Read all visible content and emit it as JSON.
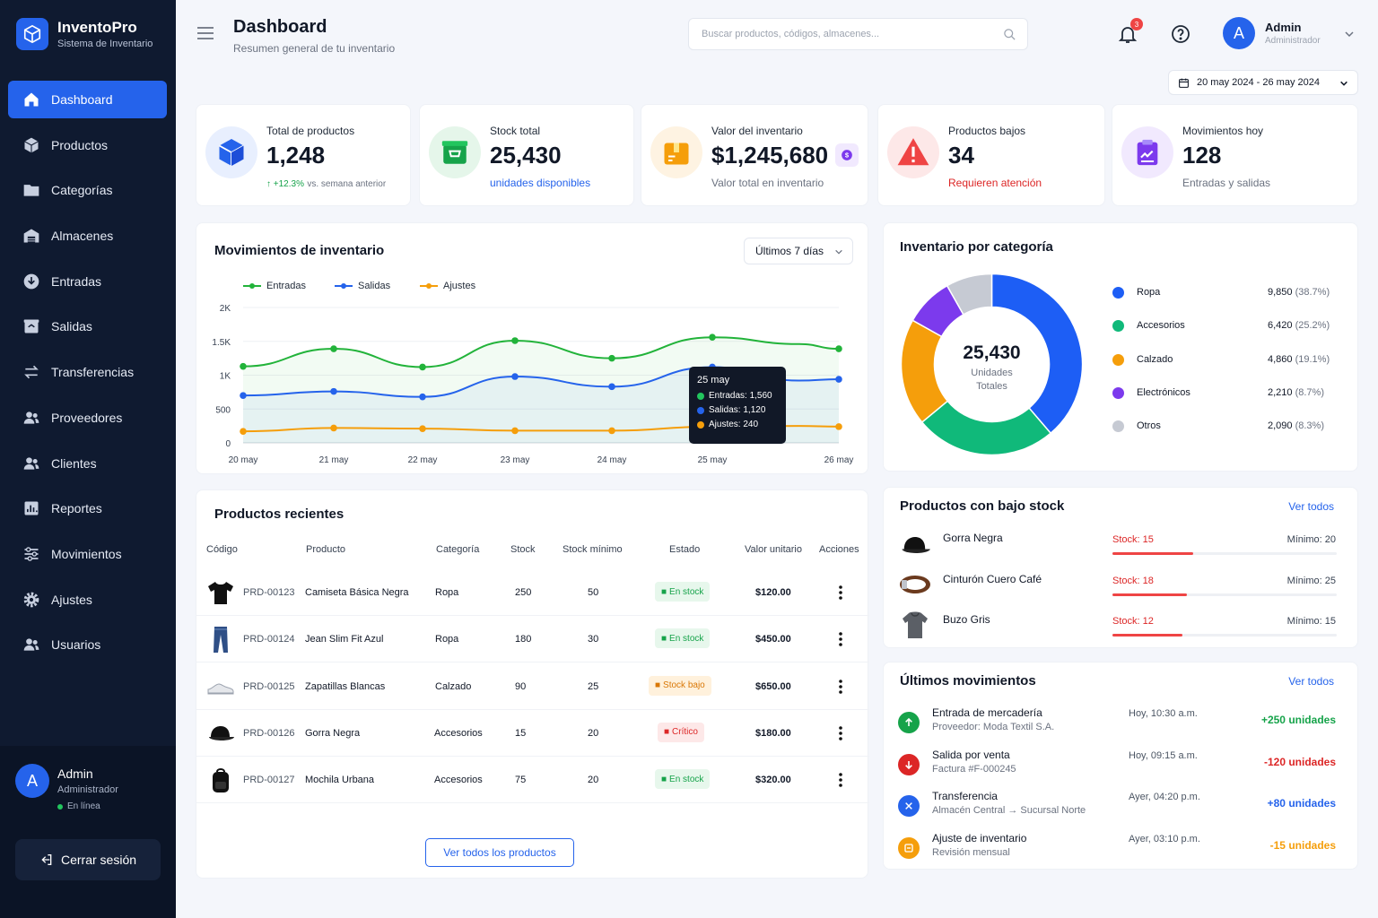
{
  "brand": {
    "name": "InventoPro",
    "subtitle": "Sistema de Inventario"
  },
  "nav": [
    {
      "label": "Dashboard",
      "icon": "home-icon",
      "active": true
    },
    {
      "label": "Productos",
      "icon": "box-icon"
    },
    {
      "label": "Categorías",
      "icon": "folder-icon"
    },
    {
      "label": "Almacenes",
      "icon": "warehouse-icon"
    },
    {
      "label": "Entradas",
      "icon": "download-icon"
    },
    {
      "label": "Salidas",
      "icon": "upload-box-icon"
    },
    {
      "label": "Transferencias",
      "icon": "transfer-icon"
    },
    {
      "label": "Proveedores",
      "icon": "users-icon"
    },
    {
      "label": "Clientes",
      "icon": "users-icon"
    },
    {
      "label": "Reportes",
      "icon": "chart-icon"
    },
    {
      "label": "Movimientos",
      "icon": "sliders-icon"
    },
    {
      "label": "Ajustes",
      "icon": "gear-icon"
    },
    {
      "label": "Usuarios",
      "icon": "users-icon"
    }
  ],
  "sidebar_user": {
    "initial": "A",
    "name": "Admin",
    "role": "Administrador",
    "status": "En línea",
    "logout": "Cerrar sesión"
  },
  "header": {
    "title": "Dashboard",
    "subtitle": "Resumen general de tu inventario",
    "search_placeholder": "Buscar productos, códigos, almacenes...",
    "notifications": "3",
    "user_initial": "A",
    "user_name": "Admin",
    "user_role": "Administrador",
    "date_range": "20 may 2024 - 26 may 2024"
  },
  "stats": [
    {
      "label": "Total de productos",
      "value": "1,248",
      "trend": "+12.3%",
      "trend_note": "vs. semana anterior",
      "color": "#2563eb"
    },
    {
      "label": "Stock total",
      "value": "25,430",
      "foot": "unidades disponibles",
      "color": "#16a34a"
    },
    {
      "label": "Valor del inventario",
      "value": "$1,245,680",
      "foot": "Valor total en inventario",
      "color": "#f59e0b"
    },
    {
      "label": "Productos bajos",
      "value": "34",
      "foot": "Requieren atención",
      "color": "#ef4444"
    },
    {
      "label": "Movimientos hoy",
      "value": "128",
      "foot": "Entradas y salidas",
      "color": "#7c3aed"
    }
  ],
  "movements_chart": {
    "title": "Movimientos de inventario",
    "range": "Últimos 7 días",
    "tooltip": {
      "date": "25 may",
      "entradas": "Entradas: 1,560",
      "salidas": "Salidas: 1,120",
      "ajustes": "Ajustes: 240"
    }
  },
  "chart_data": {
    "type": "line",
    "categories": [
      "20 may",
      "21 may",
      "22 may",
      "23 may",
      "24 may",
      "25 may",
      "26 may"
    ],
    "series": [
      {
        "name": "Entradas",
        "color": "#22b33a",
        "values": [
          1130,
          1390,
          1120,
          1510,
          1250,
          1560,
          1390
        ]
      },
      {
        "name": "Salidas",
        "color": "#2563eb",
        "values": [
          700,
          760,
          680,
          980,
          830,
          1120,
          940
        ]
      },
      {
        "name": "Ajustes",
        "color": "#f59e0b",
        "values": [
          170,
          220,
          210,
          180,
          180,
          240,
          240
        ]
      }
    ],
    "x_extra_points": {
      "Entradas": 1460,
      "Salidas": 920,
      "Ajustes": 250
    },
    "ylim": [
      0,
      2000
    ],
    "yticks": [
      "0",
      "500",
      "1K",
      "1.5K",
      "2K"
    ],
    "grid": true,
    "legend": "top-left"
  },
  "category_chart": {
    "title": "Inventario por categoría",
    "total": "25,430",
    "total_label_1": "Unidades",
    "total_label_2": "Totales",
    "items": [
      {
        "name": "Ropa",
        "value": 9850,
        "display": "9,850",
        "pct": "(38.7%)",
        "color": "#1d5ef5"
      },
      {
        "name": "Accesorios",
        "value": 6420,
        "display": "6,420",
        "pct": "(25.2%)",
        "color": "#10b97a"
      },
      {
        "name": "Calzado",
        "value": 4860,
        "display": "4,860",
        "pct": "(19.1%)",
        "color": "#f59e0b"
      },
      {
        "name": "Electrónicos",
        "value": 2210,
        "display": "2,210",
        "pct": "(8.7%)",
        "color": "#7c3aed"
      },
      {
        "name": "Otros",
        "value": 2090,
        "display": "2,090",
        "pct": "(8.3%)",
        "color": "#c6cad3"
      }
    ]
  },
  "recent_products": {
    "title": "Productos recientes",
    "columns": [
      "Código",
      "Producto",
      "Categoría",
      "Stock",
      "Stock mínimo",
      "Estado",
      "Valor unitario",
      "Acciones"
    ],
    "rows": [
      {
        "code": "PRD-00123",
        "name": "Camiseta Básica Negra",
        "category": "Ropa",
        "stock": "250",
        "min": "50",
        "status": "En stock",
        "status_type": "green",
        "price": "$120.00",
        "thumb": "tshirt"
      },
      {
        "code": "PRD-00124",
        "name": "Jean Slim Fit Azul",
        "category": "Ropa",
        "stock": "180",
        "min": "30",
        "status": "En stock",
        "status_type": "green",
        "price": "$450.00",
        "thumb": "jeans"
      },
      {
        "code": "PRD-00125",
        "name": "Zapatillas Blancas",
        "category": "Calzado",
        "stock": "90",
        "min": "25",
        "status": "Stock bajo",
        "status_type": "orange",
        "price": "$650.00",
        "thumb": "shoe"
      },
      {
        "code": "PRD-00126",
        "name": "Gorra Negra",
        "category": "Accesorios",
        "stock": "15",
        "min": "20",
        "status": "Crítico",
        "status_type": "red",
        "price": "$180.00",
        "thumb": "cap"
      },
      {
        "code": "PRD-00127",
        "name": "Mochila Urbana",
        "category": "Accesorios",
        "stock": "75",
        "min": "20",
        "status": "En stock",
        "status_type": "green",
        "price": "$320.00",
        "thumb": "backpack"
      }
    ],
    "view_all": "Ver todos los productos"
  },
  "low_stock": {
    "title": "Productos con bajo stock",
    "view_all": "Ver todos",
    "items": [
      {
        "name": "Gorra Negra",
        "stock": "Stock: 15",
        "min": "Mínimo: 20",
        "level": 0.36,
        "thumb": "cap"
      },
      {
        "name": "Cinturón Cuero Café",
        "stock": "Stock: 18",
        "min": "Mínimo: 25",
        "level": 0.33,
        "thumb": "belt"
      },
      {
        "name": "Buzo Gris",
        "stock": "Stock: 12",
        "min": "Mínimo: 15",
        "level": 0.31,
        "thumb": "hoodie"
      }
    ]
  },
  "last_movements": {
    "title": "Últimos movimientos",
    "view_all": "Ver todos",
    "items": [
      {
        "title": "Entrada de mercadería",
        "sub": "Proveedor: Moda Textil S.A.",
        "time": "Hoy, 10:30 a.m.",
        "qty": "+250 unidades",
        "color": "#16a34a",
        "icon": "arrow-up-icon"
      },
      {
        "title": "Salida por venta",
        "sub": "Factura #F-000245",
        "time": "Hoy, 09:15 a.m.",
        "qty": "-120 unidades",
        "color": "#dc2626",
        "icon": "arrow-down-icon"
      },
      {
        "title": "Transferencia",
        "sub": "Almacén Central → Sucursal Norte",
        "time": "Ayer, 04:20 p.m.",
        "qty": "+80 unidades",
        "color": "#2563eb",
        "icon": "transfer-icon"
      },
      {
        "title": "Ajuste de inventario",
        "sub": "Revisión mensual",
        "time": "Ayer, 03:10 p.m.",
        "qty": "-15 unidades",
        "color": "#f59e0b",
        "icon": "adjust-icon"
      }
    ]
  }
}
